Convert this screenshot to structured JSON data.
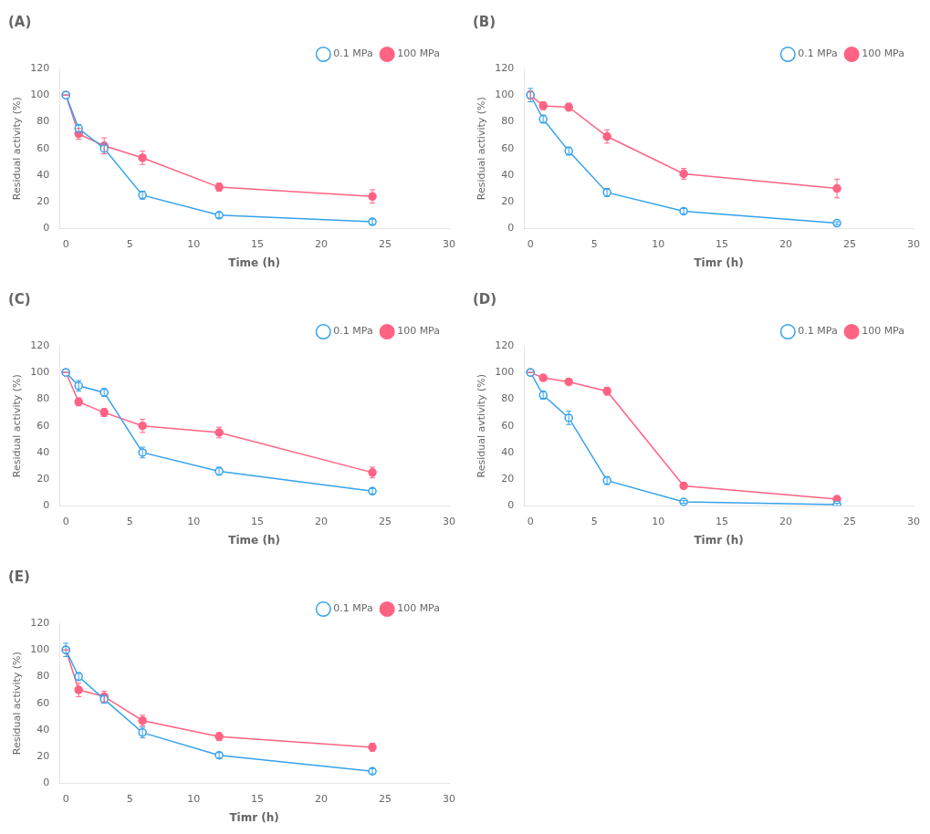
{
  "chart_data": [
    {
      "type": "line",
      "title": "(A)",
      "xlabel": "Time (h)",
      "ylabel": "Residual activity (%)",
      "x": [
        0,
        1,
        3,
        6,
        12,
        24
      ],
      "series": [
        {
          "name": "0.1 MPa",
          "values": [
            100,
            75,
            60,
            25,
            10,
            5
          ],
          "yerr": [
            0,
            3,
            4,
            3,
            2,
            2
          ],
          "marker": "open_circle",
          "line_style": "solid"
        },
        {
          "name": "100 MPa",
          "values": [
            100,
            71,
            62,
            53,
            31,
            24
          ],
          "yerr": [
            0,
            4,
            6,
            5,
            3,
            5
          ],
          "marker": "circle",
          "line_style": "solid"
        }
      ],
      "xlim": [
        -0.5,
        30
      ],
      "xticks": [
        0,
        5,
        10,
        15,
        20,
        25,
        30
      ],
      "ylim": [
        0,
        120
      ],
      "yticks": [
        0,
        20,
        40,
        60,
        80,
        100,
        120
      ],
      "grid": false,
      "legend": "upper right"
    },
    {
      "type": "line",
      "title": "(B)",
      "xlabel": "Timr (h)",
      "ylabel": "Residual activity (%)",
      "x": [
        0,
        1,
        3,
        6,
        12,
        24
      ],
      "series": [
        {
          "name": "0.1 MPa",
          "values": [
            100,
            82,
            58,
            27,
            13,
            4
          ],
          "yerr": [
            5,
            3,
            3,
            3,
            2,
            1
          ],
          "marker": "open_circle",
          "line_style": "solid"
        },
        {
          "name": "100 MPa",
          "values": [
            100,
            92,
            91,
            69,
            41,
            30
          ],
          "yerr": [
            3,
            3,
            3,
            5,
            4,
            7
          ],
          "marker": "circle",
          "line_style": "solid"
        }
      ],
      "xlim": [
        -0.5,
        30
      ],
      "xticks": [
        0,
        5,
        10,
        15,
        20,
        25,
        30
      ],
      "ylim": [
        0,
        120
      ],
      "yticks": [
        0,
        20,
        40,
        60,
        80,
        100,
        120
      ],
      "grid": false,
      "legend": "upper right"
    },
    {
      "type": "line",
      "title": "(C)",
      "xlabel": "Time (h)",
      "ylabel": "Residual activity (%)",
      "x": [
        0,
        1,
        3,
        6,
        12,
        24
      ],
      "series": [
        {
          "name": "0.1 MPa",
          "values": [
            100,
            90,
            85,
            40,
            26,
            11
          ],
          "yerr": [
            0,
            4,
            3,
            4,
            3,
            2
          ],
          "marker": "open_circle",
          "line_style": "solid"
        },
        {
          "name": "100 MPa",
          "values": [
            100,
            78,
            70,
            60,
            55,
            25
          ],
          "yerr": [
            0,
            3,
            3,
            5,
            4,
            4
          ],
          "marker": "circle",
          "line_style": "solid"
        }
      ],
      "xlim": [
        -0.5,
        30
      ],
      "xticks": [
        0,
        5,
        10,
        15,
        20,
        25,
        30
      ],
      "ylim": [
        0,
        120
      ],
      "yticks": [
        0,
        20,
        40,
        60,
        80,
        100,
        120
      ],
      "grid": false,
      "legend": "upper right"
    },
    {
      "type": "line",
      "title": "(D)",
      "xlabel": "Timr (h)",
      "ylabel": "Residual avtivity (%)",
      "x": [
        0,
        1,
        3,
        6,
        12,
        24
      ],
      "series": [
        {
          "name": "0.1 MPa",
          "values": [
            100,
            83,
            66,
            19,
            3,
            1
          ],
          "yerr": [
            0,
            3,
            5,
            3,
            1,
            1
          ],
          "marker": "open_circle",
          "line_style": "solid"
        },
        {
          "name": "100 MPa",
          "values": [
            100,
            96,
            93,
            86,
            15,
            5
          ],
          "yerr": [
            0,
            2,
            2,
            3,
            2,
            1
          ],
          "marker": "circle",
          "line_style": "solid"
        }
      ],
      "xlim": [
        -0.5,
        30
      ],
      "xticks": [
        0,
        5,
        10,
        15,
        20,
        25,
        30
      ],
      "ylim": [
        0,
        120
      ],
      "yticks": [
        0,
        20,
        40,
        60,
        80,
        100,
        120
      ],
      "grid": false,
      "legend": "upper right"
    },
    {
      "type": "line",
      "title": "(E)",
      "xlabel": "Timr (h)",
      "ylabel": "Residual activity (%)",
      "x": [
        0,
        1,
        3,
        6,
        12,
        24
      ],
      "series": [
        {
          "name": "0.1 MPa",
          "values": [
            100,
            80,
            63,
            38,
            21,
            9
          ],
          "yerr": [
            5,
            3,
            3,
            4,
            2,
            2
          ],
          "marker": "open_circle",
          "line_style": "solid"
        },
        {
          "name": "100 MPa",
          "values": [
            100,
            70,
            65,
            47,
            35,
            27
          ],
          "yerr": [
            0,
            5,
            4,
            4,
            3,
            3
          ],
          "marker": "circle",
          "line_style": "solid"
        }
      ],
      "xlim": [
        -0.5,
        30
      ],
      "xticks": [
        0,
        5,
        10,
        15,
        20,
        25,
        30
      ],
      "ylim": [
        0,
        120
      ],
      "yticks": [
        0,
        20,
        40,
        60,
        80,
        100,
        120
      ],
      "grid": false,
      "legend": "upper right"
    }
  ]
}
